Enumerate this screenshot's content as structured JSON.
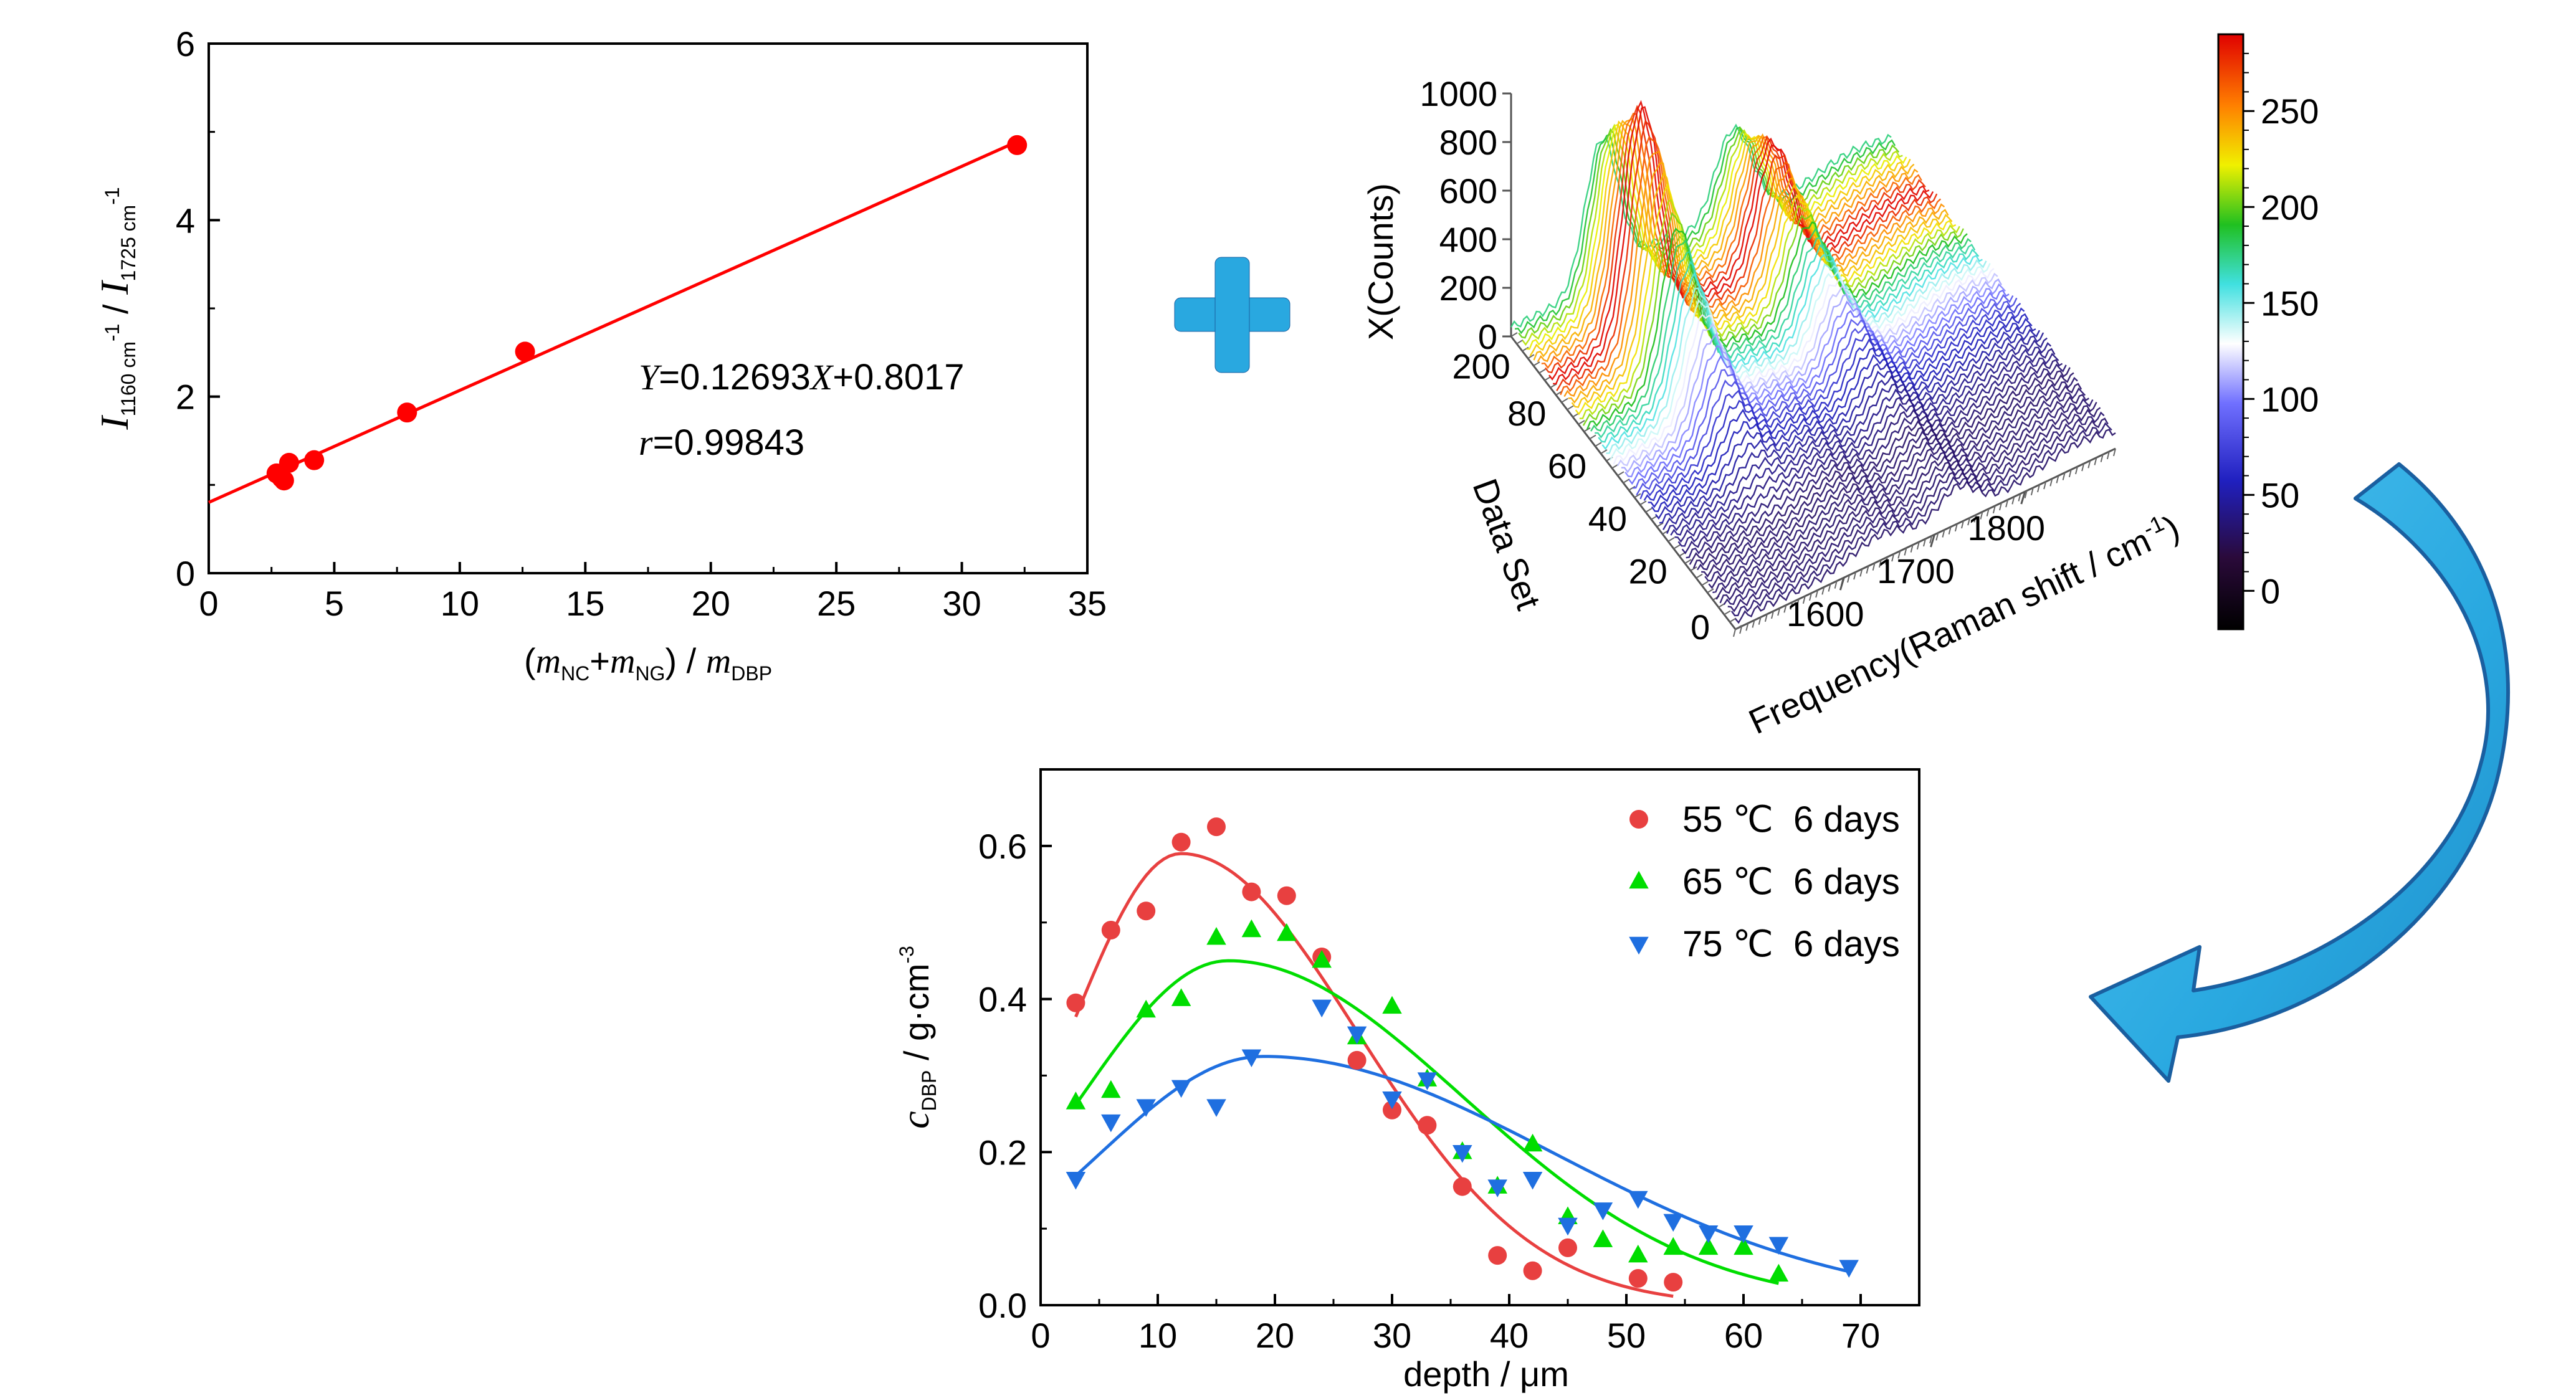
{
  "chart_data": [
    {
      "type": "scatter",
      "title": "",
      "xlabel": {
        "open": "(",
        "m1": "m",
        "sub1": "NC",
        "plus": "+",
        "m2": "m",
        "sub2": "NG",
        "close": ")",
        "slash": " / ",
        "m3": "m",
        "sub3": "DBP"
      },
      "ylabel": {
        "I1": "I",
        "sub1": "1160 cm",
        "sup1": "-1",
        "slash": " / ",
        "I2": "I",
        "sub2": "1725 cm",
        "sup2": "-1"
      },
      "xlim": [
        0,
        35
      ],
      "ylim": [
        0,
        6
      ],
      "xticks": [
        "0",
        "5",
        "10",
        "15",
        "20",
        "25",
        "30",
        "35"
      ],
      "yticks": [
        "0",
        "2",
        "4",
        "6"
      ],
      "series": [
        {
          "x": [
            2.7,
            2.9,
            3.0,
            3.2,
            4.2,
            7.9,
            12.6,
            32.2
          ],
          "y": [
            1.13,
            1.08,
            1.05,
            1.25,
            1.28,
            1.82,
            2.51,
            4.85
          ],
          "color": "#ff0000",
          "marker": "circle"
        }
      ],
      "fit": {
        "slope": 0.12693,
        "intercept": 0.8017,
        "color": "#ff0000"
      },
      "annotations": {
        "equation": {
          "Y": "Y",
          "mid": "=0.12693",
          "X": "X",
          "tail": "+0.8017"
        },
        "r": {
          "r": "r",
          "tail": "=0.99843"
        }
      }
    },
    {
      "type": "surface3d",
      "zlabel": "X(Counts)",
      "xlabel": "Frequency(Raman shift / cm",
      "xlabel_sup": "-1",
      "xlabel_close": ")",
      "ylabel": "Data Set",
      "zticks": [
        "0",
        "200",
        "400",
        "600",
        "800",
        "1000"
      ],
      "xticks": [
        "1600",
        "1700",
        "1800"
      ],
      "yticks": [
        "0",
        "20",
        "40",
        "60",
        "80",
        "200"
      ],
      "colorbar": {
        "ticks": [
          "0",
          "50",
          "100",
          "150",
          "200",
          "250"
        ],
        "range": [
          -20,
          290
        ]
      }
    },
    {
      "type": "scatter",
      "title": "",
      "xlabel": "depth / μm",
      "ylabel": {
        "c": "c",
        "sub": "DBP",
        "unit": " / g·cm",
        "sup": "-3"
      },
      "xlim": [
        0,
        75
      ],
      "ylim": [
        0,
        0.7
      ],
      "xticks": [
        "0",
        "10",
        "20",
        "30",
        "40",
        "50",
        "60",
        "70"
      ],
      "yticks": [
        "0.0",
        "0.2",
        "0.4",
        "0.6"
      ],
      "legend_position": "top-right",
      "series": [
        {
          "name": "55 ℃  6 days",
          "color": "#e84040",
          "marker": "circle",
          "x": [
            3,
            6,
            9,
            12,
            15,
            18,
            21,
            24,
            27,
            30,
            33,
            36,
            39,
            42,
            45,
            51,
            54
          ],
          "y": [
            0.395,
            0.49,
            0.515,
            0.605,
            0.625,
            0.54,
            0.535,
            0.455,
            0.32,
            0.255,
            0.235,
            0.155,
            0.065,
            0.045,
            0.075,
            0.035,
            0.03
          ],
          "fit": {
            "amplitude": 0.59,
            "center": 12.0,
            "left_width": 9.5,
            "right_width": 15.0,
            "x_end": 54
          }
        },
        {
          "name": "65 ℃  6 days",
          "color": "#00dd00",
          "marker": "triangle-up",
          "x": [
            3,
            6,
            9,
            12,
            15,
            18,
            21,
            24,
            27,
            30,
            33,
            36,
            39,
            42,
            45,
            48,
            51,
            54,
            57,
            60,
            63
          ],
          "y": [
            0.265,
            0.28,
            0.385,
            0.4,
            0.48,
            0.49,
            0.485,
            0.45,
            0.35,
            0.39,
            0.295,
            0.2,
            0.155,
            0.21,
            0.115,
            0.085,
            0.065,
            0.075,
            0.075,
            0.075,
            0.04
          ],
          "fit": {
            "amplitude": 0.45,
            "center": 16.0,
            "left_width": 12.5,
            "right_width": 20.0,
            "x_end": 63
          }
        },
        {
          "name": "75 ℃  6 days",
          "color": "#1f6fe0",
          "marker": "triangle-down",
          "x": [
            3,
            6,
            9,
            12,
            15,
            18,
            24,
            27,
            30,
            33,
            36,
            39,
            42,
            45,
            48,
            51,
            54,
            57,
            60,
            63,
            69
          ],
          "y": [
            0.165,
            0.24,
            0.26,
            0.285,
            0.26,
            0.325,
            0.39,
            0.355,
            0.27,
            0.295,
            0.2,
            0.155,
            0.165,
            0.105,
            0.125,
            0.14,
            0.11,
            0.095,
            0.095,
            0.08,
            0.05
          ],
          "fit": {
            "amplitude": 0.325,
            "center": 19.0,
            "left_width": 14.0,
            "right_width": 25.0,
            "x_end": 69
          }
        }
      ]
    }
  ],
  "decor": {
    "plus_color": "#29a8e0",
    "arrow_color": "#29a8e0",
    "arrow_dark": "#1a5fa0"
  }
}
